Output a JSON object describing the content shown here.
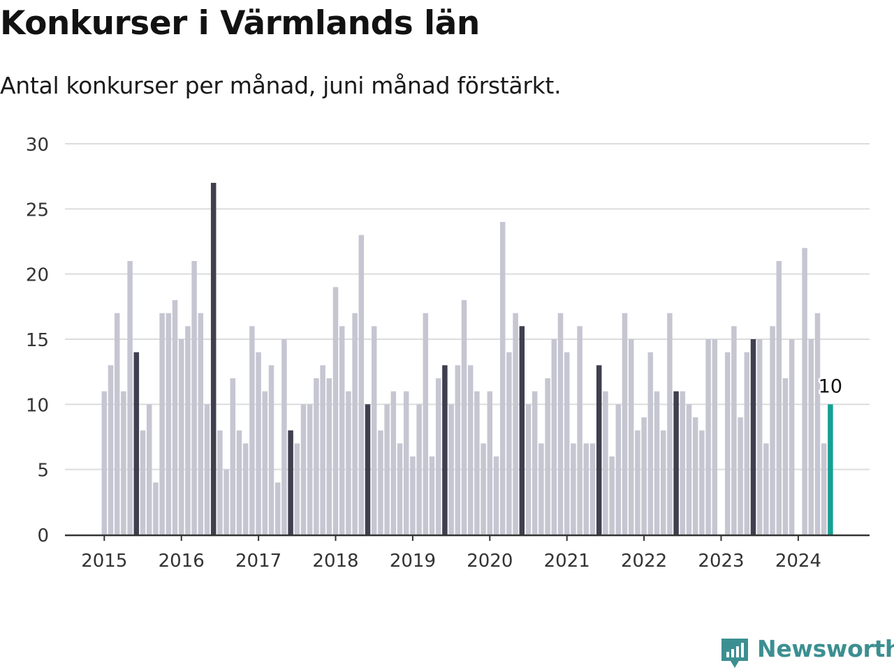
{
  "title": "Konkurser i Värmlands län",
  "subtitle": "Antal konkurser per månad, juni månad förstärkt.",
  "brand": {
    "name": "Newsworthy",
    "color": "#3c8f91"
  },
  "chart_data": {
    "type": "bar",
    "title": "Konkurser i Värmlands län",
    "subtitle": "Antal konkurser per månad, juni månad förstärkt.",
    "xlabel": "",
    "ylabel": "",
    "ylim": [
      0,
      30
    ],
    "yticks": [
      0,
      5,
      10,
      15,
      20,
      25,
      30
    ],
    "xticks": [
      "2015",
      "2016",
      "2017",
      "2018",
      "2019",
      "2020",
      "2021",
      "2022",
      "2023",
      "2024"
    ],
    "grid": true,
    "start": "2015-01",
    "highlight_month": "06",
    "colors": {
      "default": "#c6c6d2",
      "june": "#3f3f4f",
      "latest": "#14a093",
      "grid": "#dcdcdc",
      "axis": "#333333"
    },
    "annotation": {
      "month": "2024-06",
      "label": "10"
    },
    "values": [
      11,
      13,
      17,
      11,
      21,
      14,
      8,
      10,
      4,
      17,
      17,
      18,
      15,
      16,
      21,
      17,
      10,
      27,
      8,
      5,
      12,
      8,
      7,
      16,
      14,
      11,
      13,
      4,
      15,
      8,
      7,
      10,
      10,
      12,
      13,
      12,
      19,
      16,
      11,
      17,
      23,
      10,
      16,
      8,
      10,
      11,
      7,
      11,
      6,
      10,
      17,
      6,
      12,
      13,
      10,
      13,
      18,
      13,
      11,
      7,
      11,
      6,
      24,
      14,
      17,
      16,
      10,
      11,
      7,
      12,
      15,
      17,
      14,
      7,
      16,
      7,
      7,
      13,
      11,
      6,
      10,
      17,
      15,
      8,
      9,
      14,
      11,
      8,
      17,
      11,
      11,
      10,
      9,
      8,
      15,
      15,
      0,
      14,
      16,
      9,
      14,
      15,
      15,
      7,
      16,
      21,
      12,
      15,
      0,
      22,
      15,
      17,
      7,
      10
    ]
  }
}
